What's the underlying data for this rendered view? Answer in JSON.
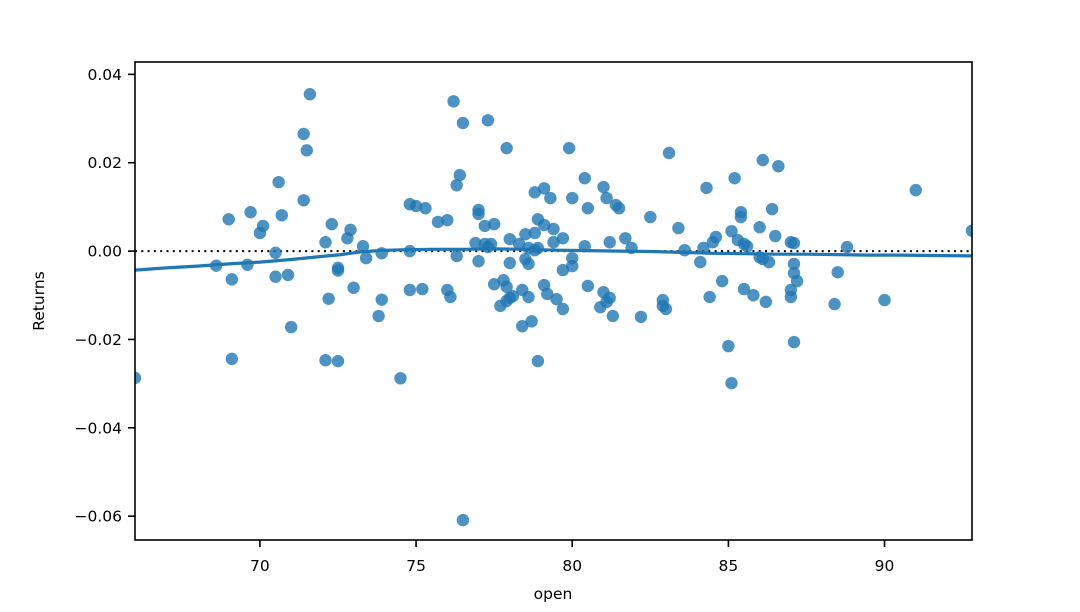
{
  "chart_data": {
    "type": "scatter",
    "title": "",
    "xlabel": "open",
    "ylabel": "Returns",
    "xlim": [
      66.0,
      92.8
    ],
    "ylim": [
      -0.0654,
      0.0428
    ],
    "xticks": [
      70,
      75,
      80,
      85,
      90
    ],
    "xtick_labels": [
      "70",
      "75",
      "80",
      "85",
      "90"
    ],
    "yticks": [
      0.04,
      0.02,
      0.0,
      -0.02,
      -0.04,
      -0.06
    ],
    "ytick_labels": [
      "0.04",
      "0.02",
      "0.00",
      "−0.02",
      "−0.04",
      "−0.06"
    ],
    "grid": false,
    "legend": null,
    "colors": {
      "marker": "#1f77b4",
      "marker_opacity": 0.8,
      "trend_line": "#1f77b4",
      "zero_line": "#000000",
      "spine": "#000000"
    },
    "zero_line": {
      "y": 0.0,
      "style": "dotted"
    },
    "trend": {
      "name": "lowess-fit",
      "points": [
        [
          66.0,
          -0.0043
        ],
        [
          67.0,
          -0.0038
        ],
        [
          68.0,
          -0.0034
        ],
        [
          69.0,
          -0.0029
        ],
        [
          70.0,
          -0.0025
        ],
        [
          71.0,
          -0.0019
        ],
        [
          72.0,
          -0.0012
        ],
        [
          72.6,
          -0.0008
        ],
        [
          73.2,
          -0.0002
        ],
        [
          73.8,
          0.0001
        ],
        [
          74.5,
          0.0003
        ],
        [
          75.5,
          0.0004
        ],
        [
          76.5,
          0.0004
        ],
        [
          77.5,
          0.0005
        ],
        [
          78.5,
          0.0004
        ],
        [
          79.5,
          0.0002
        ],
        [
          80.5,
          0.0001
        ],
        [
          81.5,
          0.0
        ],
        [
          82.5,
          -0.0001
        ],
        [
          83.5,
          -0.0003
        ],
        [
          84.5,
          -0.0005
        ],
        [
          85.5,
          -0.0006
        ],
        [
          86.5,
          -0.0007
        ],
        [
          87.5,
          -0.0007
        ],
        [
          88.5,
          -0.0008
        ],
        [
          89.5,
          -0.0009
        ],
        [
          90.5,
          -0.0009
        ],
        [
          91.5,
          -0.001
        ],
        [
          92.8,
          -0.0011
        ]
      ]
    },
    "series": [
      {
        "name": "residual-points",
        "points": [
          [
            66.0,
            -0.0287
          ],
          [
            68.6,
            -0.0033
          ],
          [
            69.0,
            0.0072
          ],
          [
            69.1,
            -0.0064
          ],
          [
            69.1,
            -0.0244
          ],
          [
            69.6,
            -0.0031
          ],
          [
            69.7,
            0.0088
          ],
          [
            70.0,
            0.0041
          ],
          [
            70.1,
            0.0057
          ],
          [
            70.5,
            -0.0004
          ],
          [
            70.5,
            -0.0058
          ],
          [
            70.6,
            0.0156
          ],
          [
            70.7,
            0.0081
          ],
          [
            70.9,
            -0.0054
          ],
          [
            71.0,
            -0.0172
          ],
          [
            71.4,
            0.0265
          ],
          [
            71.4,
            0.0115
          ],
          [
            71.5,
            0.0228
          ],
          [
            71.6,
            0.0355
          ],
          [
            72.1,
            0.002
          ],
          [
            72.1,
            -0.0247
          ],
          [
            72.2,
            -0.0108
          ],
          [
            72.3,
            0.0061
          ],
          [
            72.5,
            -0.0038
          ],
          [
            72.5,
            -0.0044
          ],
          [
            72.5,
            -0.0249
          ],
          [
            72.8,
            0.0029
          ],
          [
            72.9,
            0.0048
          ],
          [
            73.0,
            -0.0083
          ],
          [
            73.3,
            0.0011
          ],
          [
            73.4,
            -0.0016
          ],
          [
            73.8,
            -0.0147
          ],
          [
            73.9,
            -0.0005
          ],
          [
            73.9,
            -0.011
          ],
          [
            74.5,
            -0.0288
          ],
          [
            74.8,
            0.0106
          ],
          [
            74.8,
            0.0
          ],
          [
            74.8,
            -0.0088
          ],
          [
            75.0,
            0.0102
          ],
          [
            75.2,
            -0.0086
          ],
          [
            75.3,
            0.0097
          ],
          [
            75.7,
            0.0066
          ],
          [
            76.0,
            0.007
          ],
          [
            76.0,
            -0.0088
          ],
          [
            76.1,
            -0.0104
          ],
          [
            76.2,
            0.0339
          ],
          [
            76.3,
            0.0149
          ],
          [
            76.3,
            -0.0011
          ],
          [
            76.4,
            0.0172
          ],
          [
            76.5,
            0.029
          ],
          [
            76.5,
            -0.0609
          ],
          [
            76.9,
            0.0018
          ],
          [
            77.0,
            0.0093
          ],
          [
            77.0,
            0.0084
          ],
          [
            77.0,
            -0.0023
          ],
          [
            77.2,
            0.0057
          ],
          [
            77.2,
            0.0016
          ],
          [
            77.3,
            0.0296
          ],
          [
            77.3,
            0.0009
          ],
          [
            77.4,
            0.0016
          ],
          [
            77.5,
            0.0061
          ],
          [
            77.5,
            -0.0075
          ],
          [
            77.7,
            -0.0124
          ],
          [
            77.8,
            -0.0066
          ],
          [
            77.9,
            0.0233
          ],
          [
            77.9,
            -0.0081
          ],
          [
            77.9,
            -0.0113
          ],
          [
            78.0,
            0.0027
          ],
          [
            78.0,
            -0.0027
          ],
          [
            78.0,
            -0.0106
          ],
          [
            78.1,
            -0.0102
          ],
          [
            78.3,
            0.0016
          ],
          [
            78.4,
            -0.0088
          ],
          [
            78.4,
            -0.017
          ],
          [
            78.5,
            0.0038
          ],
          [
            78.5,
            -0.0018
          ],
          [
            78.6,
            0.0007
          ],
          [
            78.6,
            -0.0029
          ],
          [
            78.6,
            -0.0104
          ],
          [
            78.7,
            -0.0159
          ],
          [
            78.8,
            0.0133
          ],
          [
            78.8,
            0.0041
          ],
          [
            78.8,
            0.0002
          ],
          [
            78.9,
            0.0072
          ],
          [
            78.9,
            0.0007
          ],
          [
            78.9,
            -0.0249
          ],
          [
            79.1,
            0.0142
          ],
          [
            79.1,
            0.0059
          ],
          [
            79.1,
            -0.0077
          ],
          [
            79.2,
            -0.0097
          ],
          [
            79.3,
            0.012
          ],
          [
            79.4,
            0.005
          ],
          [
            79.4,
            0.002
          ],
          [
            79.5,
            -0.0109
          ],
          [
            79.7,
            0.0029
          ],
          [
            79.7,
            -0.0043
          ],
          [
            79.7,
            -0.0131
          ],
          [
            79.9,
            0.0233
          ],
          [
            80.0,
            0.012
          ],
          [
            80.0,
            -0.0016
          ],
          [
            80.0,
            -0.0034
          ],
          [
            80.4,
            0.0165
          ],
          [
            80.4,
            0.0011
          ],
          [
            80.5,
            0.0097
          ],
          [
            80.5,
            -0.0079
          ],
          [
            80.9,
            -0.0127
          ],
          [
            81.0,
            0.0145
          ],
          [
            81.0,
            -0.0093
          ],
          [
            81.1,
            0.012
          ],
          [
            81.1,
            -0.0115
          ],
          [
            81.2,
            0.002
          ],
          [
            81.2,
            -0.0106
          ],
          [
            81.3,
            -0.0147
          ],
          [
            81.4,
            0.0104
          ],
          [
            81.5,
            0.0097
          ],
          [
            81.7,
            0.0029
          ],
          [
            81.9,
            0.0007
          ],
          [
            82.2,
            -0.0149
          ],
          [
            82.5,
            0.0077
          ],
          [
            82.9,
            -0.0111
          ],
          [
            82.9,
            -0.0124
          ],
          [
            83.0,
            -0.0131
          ],
          [
            83.1,
            0.0222
          ],
          [
            83.4,
            0.0052
          ],
          [
            83.6,
            0.0002
          ],
          [
            84.1,
            -0.0025
          ],
          [
            84.2,
            0.0007
          ],
          [
            84.3,
            0.0143
          ],
          [
            84.4,
            -0.0104
          ],
          [
            84.5,
            0.002
          ],
          [
            84.6,
            0.0032
          ],
          [
            84.8,
            -0.0068
          ],
          [
            85.0,
            -0.0215
          ],
          [
            85.1,
            0.0045
          ],
          [
            85.1,
            -0.0299
          ],
          [
            85.2,
            0.0165
          ],
          [
            85.3,
            0.0025
          ],
          [
            85.4,
            0.0088
          ],
          [
            85.4,
            0.0077
          ],
          [
            85.5,
            0.0016
          ],
          [
            85.5,
            -0.0086
          ],
          [
            85.6,
            0.0011
          ],
          [
            85.8,
            -0.01
          ],
          [
            86.0,
            0.0054
          ],
          [
            86.0,
            -0.0014
          ],
          [
            86.1,
            0.0206
          ],
          [
            86.1,
            -0.0018
          ],
          [
            86.2,
            -0.0115
          ],
          [
            86.3,
            -0.0025
          ],
          [
            86.4,
            0.0095
          ],
          [
            86.5,
            0.0034
          ],
          [
            86.6,
            0.0192
          ],
          [
            87.0,
            0.002
          ],
          [
            87.0,
            -0.0088
          ],
          [
            87.0,
            -0.0104
          ],
          [
            87.1,
            0.0018
          ],
          [
            87.1,
            -0.0029
          ],
          [
            87.1,
            -0.005
          ],
          [
            87.1,
            -0.0206
          ],
          [
            87.2,
            -0.0068
          ],
          [
            88.4,
            -0.012
          ],
          [
            88.5,
            -0.0048
          ],
          [
            88.8,
            0.0009
          ],
          [
            90.0,
            -0.0111
          ],
          [
            91.0,
            0.0138
          ],
          [
            92.8,
            0.0046
          ]
        ]
      }
    ]
  }
}
